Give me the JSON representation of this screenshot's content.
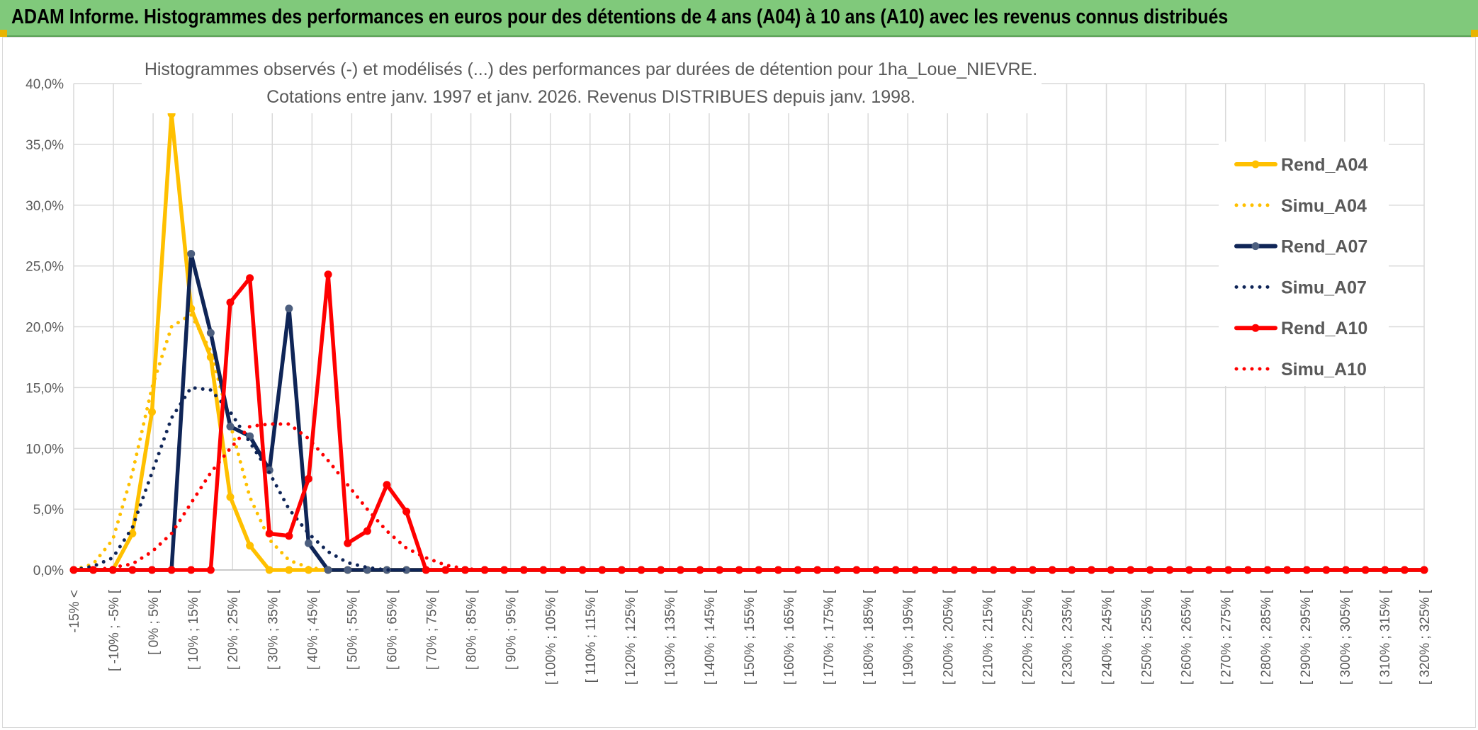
{
  "header": {
    "title": "ADAM Informe. Histogrammes des performances en euros pour des détentions de 4 ans (A04) à 10 ans (A10) avec les revenus connus distribués"
  },
  "chart_data": {
    "type": "line",
    "title_line1": "Histogrammes observés (-) et modélisés (...) des performances par durées de détention pour 1ha_Loue_NIEVRE.",
    "title_line2": "Cotations entre janv. 1997 et janv. 2026. Revenus DISTRIBUES depuis janv. 1998.",
    "xlabel": "",
    "ylabel": "",
    "ylim": [
      0,
      40
    ],
    "y_ticks": [
      "0,0%",
      "5,0%",
      "10,0%",
      "15,0%",
      "20,0%",
      "25,0%",
      "30,0%",
      "35,0%",
      "40,0%"
    ],
    "grid": true,
    "legend_position": "right",
    "x_tick_labels": [
      "-15% <",
      "[ -10% ; -5% [",
      "[ 0% ; 5% [",
      "[ 10% ; 15% [",
      "[ 20% ; 25% [",
      "[ 30% ; 35% [",
      "[ 40% ; 45% [",
      "[ 50% ; 55% [",
      "[ 60% ; 65% [",
      "[ 70% ; 75% [",
      "[ 80% ; 85% [",
      "[ 90% ; 95% [",
      "[ 100% ; 105% [",
      "[ 110% ; 115% [",
      "[ 120% ; 125% [",
      "[ 130% ; 135% [",
      "[ 140% ; 145% [",
      "[ 150% ; 155% [",
      "[ 160% ; 165% [",
      "[ 170% ; 175% [",
      "[ 180% ; 185% [",
      "[ 190% ; 195% [",
      "[ 200% ; 205% [",
      "[ 210% ; 215% [",
      "[ 220% ; 225% [",
      "[ 230% ; 235% [",
      "[ 240% ; 245% [",
      "[ 250% ; 255% [",
      "[ 260% ; 265% [",
      "[ 270% ; 275% [",
      "[ 280% ; 285% [",
      "[ 290% ; 295% [",
      "[ 300% ; 305% [",
      "[ 310% ; 315% [",
      "[ 320% ; 325% ["
    ],
    "series": [
      {
        "name": "Rend_A04",
        "color": "#ffc000",
        "style": "solid",
        "values": [
          0,
          0,
          0,
          3,
          13,
          37.5,
          21.5,
          17.5,
          6,
          2,
          0,
          0,
          0,
          0,
          0,
          0,
          0,
          0,
          0,
          0,
          0,
          0,
          0,
          0,
          0,
          0,
          0,
          0,
          0,
          0,
          0,
          0,
          0,
          0,
          0,
          0,
          0,
          0,
          0,
          0,
          0,
          0,
          0,
          0,
          0,
          0,
          0,
          0,
          0,
          0,
          0,
          0,
          0,
          0,
          0,
          0,
          0,
          0,
          0,
          0,
          0,
          0,
          0,
          0,
          0,
          0,
          0,
          0,
          0,
          0
        ]
      },
      {
        "name": "Simu_A04",
        "color": "#ffc000",
        "style": "dotted",
        "values": [
          0,
          0.5,
          2.5,
          8,
          15,
          20,
          21,
          18,
          12,
          6,
          2.5,
          0.8,
          0.2,
          0,
          0,
          0,
          0,
          0,
          0,
          0,
          0,
          0,
          0,
          0,
          0,
          0,
          0,
          0,
          0,
          0,
          0,
          0,
          0,
          0,
          0,
          0,
          0,
          0,
          0,
          0,
          0,
          0,
          0,
          0,
          0,
          0,
          0,
          0,
          0,
          0,
          0,
          0,
          0,
          0,
          0,
          0,
          0,
          0,
          0,
          0,
          0,
          0,
          0,
          0,
          0,
          0,
          0,
          0,
          0,
          0
        ]
      },
      {
        "name": "Rend_A07",
        "color": "#0f2557",
        "style": "solid",
        "values": [
          0,
          0,
          0,
          0,
          0,
          0,
          26,
          19.5,
          11.8,
          11,
          8.2,
          21.5,
          2.2,
          0,
          0,
          0,
          0,
          0,
          0,
          0,
          0,
          0,
          0,
          0,
          0,
          0,
          0,
          0,
          0,
          0,
          0,
          0,
          0,
          0,
          0,
          0,
          0,
          0,
          0,
          0,
          0,
          0,
          0,
          0,
          0,
          0,
          0,
          0,
          0,
          0,
          0,
          0,
          0,
          0,
          0,
          0,
          0,
          0,
          0,
          0,
          0,
          0,
          0,
          0,
          0,
          0,
          0,
          0,
          0,
          0
        ]
      },
      {
        "name": "Simu_A07",
        "color": "#0f2557",
        "style": "dotted",
        "values": [
          0,
          0.3,
          1,
          3.5,
          8,
          12.5,
          15,
          14.8,
          13,
          10.5,
          8,
          5,
          3,
          1.5,
          0.6,
          0.2,
          0,
          0,
          0,
          0,
          0,
          0,
          0,
          0,
          0,
          0,
          0,
          0,
          0,
          0,
          0,
          0,
          0,
          0,
          0,
          0,
          0,
          0,
          0,
          0,
          0,
          0,
          0,
          0,
          0,
          0,
          0,
          0,
          0,
          0,
          0,
          0,
          0,
          0,
          0,
          0,
          0,
          0,
          0,
          0,
          0,
          0,
          0,
          0,
          0,
          0,
          0,
          0,
          0,
          0
        ]
      },
      {
        "name": "Rend_A10",
        "color": "#ff0000",
        "style": "solid",
        "values": [
          0,
          0,
          0,
          0,
          0,
          0,
          0,
          0,
          22,
          24,
          3,
          2.8,
          7.5,
          24.3,
          2.2,
          3.2,
          7,
          4.8,
          0,
          0,
          0,
          0,
          0,
          0,
          0,
          0,
          0,
          0,
          0,
          0,
          0,
          0,
          0,
          0,
          0,
          0,
          0,
          0,
          0,
          0,
          0,
          0,
          0,
          0,
          0,
          0,
          0,
          0,
          0,
          0,
          0,
          0,
          0,
          0,
          0,
          0,
          0,
          0,
          0,
          0,
          0,
          0,
          0,
          0,
          0,
          0,
          0,
          0,
          0,
          0
        ]
      },
      {
        "name": "Simu_A10",
        "color": "#ff0000",
        "style": "dotted",
        "values": [
          0,
          0,
          0.2,
          0.5,
          1.5,
          3,
          5.5,
          8,
          10,
          11.8,
          12,
          12,
          10.8,
          9,
          7,
          5,
          3.2,
          1.8,
          1,
          0.4,
          0.1,
          0,
          0,
          0,
          0,
          0,
          0,
          0,
          0,
          0,
          0,
          0,
          0,
          0,
          0,
          0,
          0,
          0,
          0,
          0,
          0,
          0,
          0,
          0,
          0,
          0,
          0,
          0,
          0,
          0,
          0,
          0,
          0,
          0,
          0,
          0,
          0,
          0,
          0,
          0,
          0,
          0,
          0,
          0,
          0,
          0,
          0,
          0,
          0,
          0
        ]
      }
    ]
  }
}
